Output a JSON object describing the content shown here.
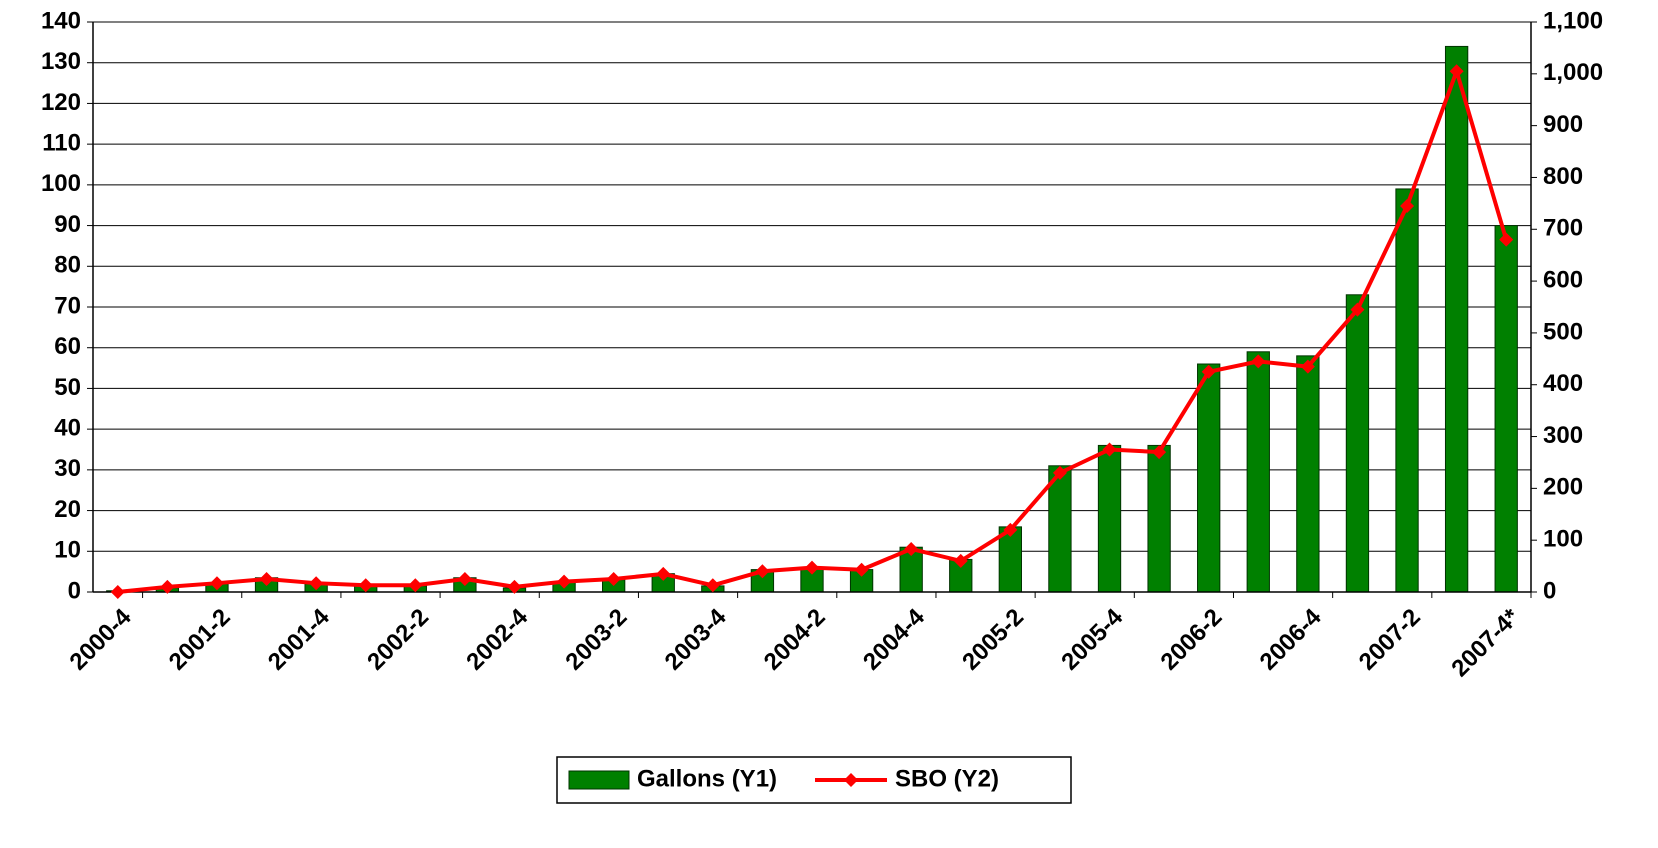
{
  "chart_data": {
    "type": "bar_line",
    "categories": [
      "2000-4",
      null,
      "2001-2",
      null,
      "2001-4",
      null,
      "2002-2",
      null,
      "2002-4",
      null,
      "2003-2",
      null,
      "2003-4",
      null,
      "2004-2",
      null,
      "2004-4",
      null,
      "2005-2",
      null,
      "2005-4",
      null,
      "2006-2",
      null,
      "2006-4",
      null,
      "2007-2",
      null,
      "2007-4*"
    ],
    "series": [
      {
        "name": "Gallons (Y1)",
        "color": "#008000",
        "type": "bar",
        "axis": "y",
        "values": [
          0.3,
          1,
          2,
          3.5,
          2,
          1.5,
          1.5,
          3.5,
          1,
          2.5,
          3,
          4.5,
          1.5,
          5.5,
          6,
          5.5,
          11,
          8,
          16,
          31,
          36,
          36,
          56,
          59,
          58,
          73,
          99,
          134,
          90
        ]
      },
      {
        "name": "SBO (Y2)",
        "color": "#ff0000",
        "type": "line",
        "axis": "y2",
        "values": [
          0,
          10,
          17,
          25,
          17,
          13,
          13,
          25,
          10,
          20,
          25,
          35,
          13,
          40,
          47,
          43,
          83,
          60,
          120,
          230,
          275,
          270,
          425,
          445,
          435,
          545,
          745,
          1005,
          680
        ]
      }
    ],
    "ylim": [
      0,
      140
    ],
    "yticks": [
      0,
      10,
      20,
      30,
      40,
      50,
      60,
      70,
      80,
      90,
      100,
      110,
      120,
      130,
      140
    ],
    "y2lim": [
      0,
      1100
    ],
    "y2ticks": [
      0,
      100,
      200,
      300,
      400,
      500,
      600,
      700,
      800,
      900,
      {
        "value": 1000,
        "label": "1,000"
      },
      {
        "value": 1100,
        "label": "1,100"
      }
    ],
    "grid": true,
    "legend": "bottom"
  }
}
